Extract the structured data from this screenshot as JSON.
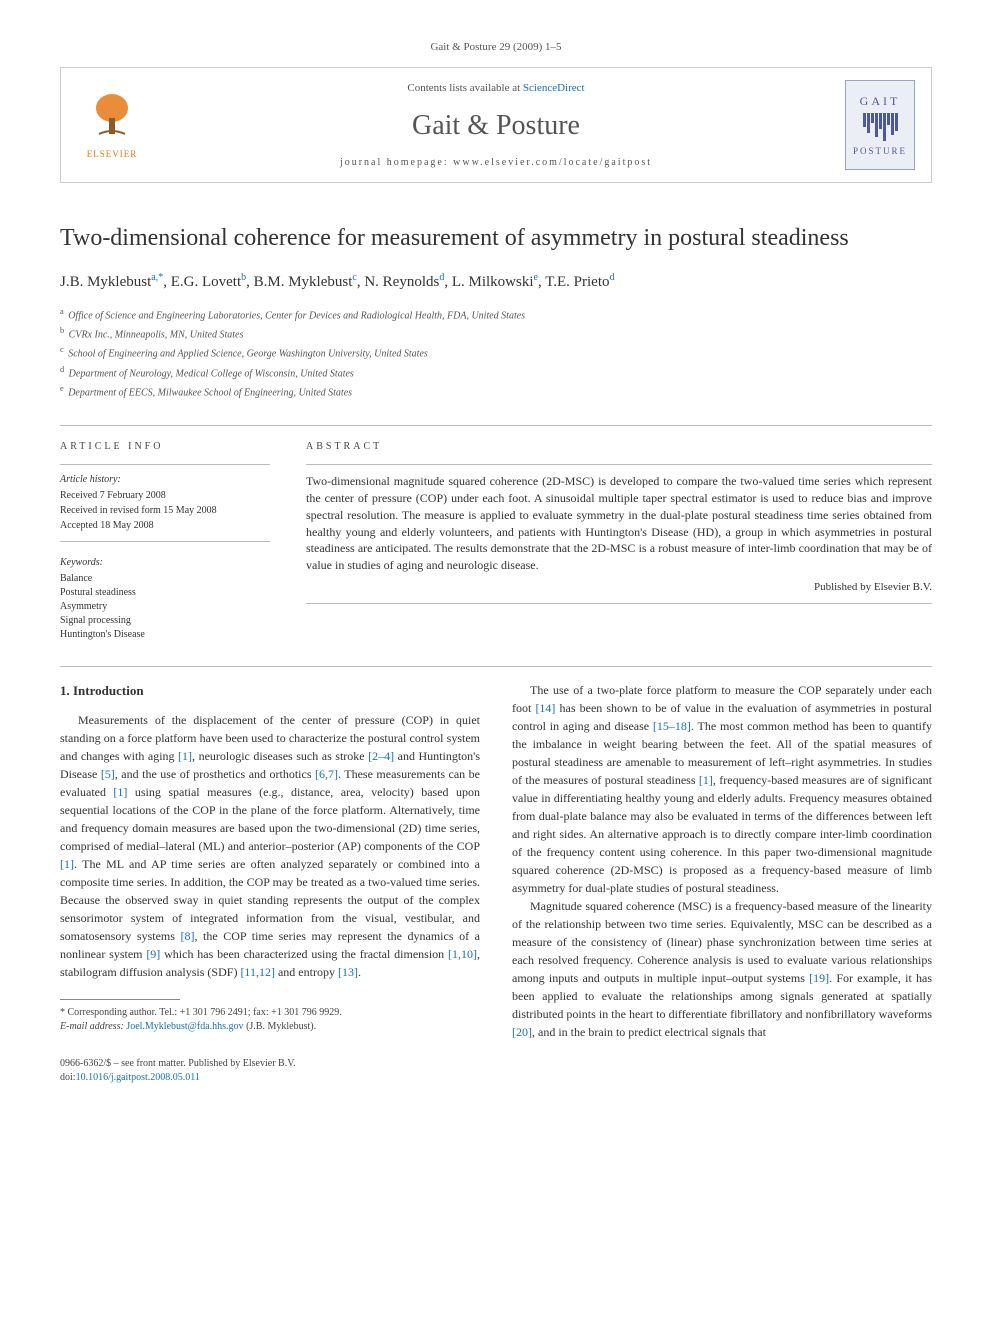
{
  "journal_ref": "Gait & Posture 29 (2009) 1–5",
  "header": {
    "contents_prefix": "Contents lists available at ",
    "contents_link": "ScienceDirect",
    "journal_name": "Gait & Posture",
    "homepage_label": "journal homepage: ",
    "homepage_url": "www.elsevier.com/locate/gaitpost",
    "publisher_brand": "ELSEVIER",
    "cover_title": "GAIT",
    "cover_subtitle": "POSTURE"
  },
  "title": "Two-dimensional coherence for measurement of asymmetry in postural steadiness",
  "authors": [
    {
      "name": "J.B. Myklebust",
      "marks": "a,*"
    },
    {
      "name": "E.G. Lovett",
      "marks": "b"
    },
    {
      "name": "B.M. Myklebust",
      "marks": "c"
    },
    {
      "name": "N. Reynolds",
      "marks": "d"
    },
    {
      "name": "L. Milkowski",
      "marks": "e"
    },
    {
      "name": "T.E. Prieto",
      "marks": "d"
    }
  ],
  "affiliations": [
    {
      "mark": "a",
      "text": "Office of Science and Engineering Laboratories, Center for Devices and Radiological Health, FDA, United States"
    },
    {
      "mark": "b",
      "text": "CVRx Inc., Minneapolis, MN, United States"
    },
    {
      "mark": "c",
      "text": "School of Engineering and Applied Science, George Washington University, United States"
    },
    {
      "mark": "d",
      "text": "Department of Neurology, Medical College of Wisconsin, United States"
    },
    {
      "mark": "e",
      "text": "Department of EECS, Milwaukee School of Engineering, United States"
    }
  ],
  "article_info": {
    "label": "ARTICLE INFO",
    "history_label": "Article history:",
    "received": "Received 7 February 2008",
    "revised": "Received in revised form 15 May 2008",
    "accepted": "Accepted 18 May 2008",
    "keywords_label": "Keywords:",
    "keywords": [
      "Balance",
      "Postural steadiness",
      "Asymmetry",
      "Signal processing",
      "Huntington's Disease"
    ]
  },
  "abstract": {
    "label": "ABSTRACT",
    "text": "Two-dimensional magnitude squared coherence (2D-MSC) is developed to compare the two-valued time series which represent the center of pressure (COP) under each foot. A sinusoidal multiple taper spectral estimator is used to reduce bias and improve spectral resolution. The measure is applied to evaluate symmetry in the dual-plate postural steadiness time series obtained from healthy young and elderly volunteers, and patients with Huntington's Disease (HD), a group in which asymmetries in postural steadiness are anticipated. The results demonstrate that the 2D-MSC is a robust measure of inter-limb coordination that may be of value in studies of aging and neurologic disease.",
    "publisher": "Published by Elsevier B.V."
  },
  "section1": {
    "heading": "1. Introduction",
    "p1a": "Measurements of the displacement of the center of pressure (COP) in quiet standing on a force platform have been used to characterize the postural control system and changes with aging ",
    "p1b": ", neurologic diseases such as stroke ",
    "p1c": " and Huntington's Disease ",
    "p1d": ", and the use of prosthetics and orthotics ",
    "p1e": ". These measurements can be evaluated ",
    "p1f": " using spatial measures (e.g., distance, area, velocity) based upon sequential locations of the COP in the plane of the force platform. Alternatively, time and frequency domain measures are based upon the two-dimensional (2D) time series, comprised of medial–lateral (ML) and anterior–posterior (AP) components of the COP ",
    "p1g": ". The ML and AP time series are often analyzed separately or combined into a composite time series. In addition, the COP may be treated as a two-valued time series. Because the observed sway in quiet standing represents the output of the complex sensorimotor system of integrated information from the visual, vestibular, and somatosensory systems ",
    "p1h": ", the COP time series may represent the dynamics of a nonlinear system ",
    "p1i": " which has been characterized using the fractal dimension ",
    "p1j": ", stabilogram diffusion analysis (SDF) ",
    "p1k": " and entropy ",
    "p1l": ".",
    "p2a": "The use of a two-plate force platform to measure the COP separately under each foot ",
    "p2b": " has been shown to be of value in the evaluation of asymmetries in postural control in aging and disease ",
    "p2c": ". The most common method has been to quantify the imbalance in weight bearing between the feet. All of the spatial measures of postural steadiness are amenable to measurement of left–right asymmetries. In studies of the measures of postural steadiness ",
    "p2d": ", frequency-based measures are of significant value in differentiating healthy young and elderly adults. Frequency measures obtained from dual-plate balance may also be evaluated in terms of the differences between left and right sides. An alternative approach is to directly compare inter-limb coordination of the frequency content using coherence. In this paper two-dimensional magnitude squared coherence (2D-MSC) is proposed as a frequency-based measure of limb asymmetry for dual-plate studies of postural steadiness.",
    "p3a": "Magnitude squared coherence (MSC) is a frequency-based measure of the linearity of the relationship between two time series. Equivalently, MSC can be described as a measure of the consistency of (linear) phase synchronization between time series at each resolved frequency. Coherence analysis is used to evaluate various relationships among inputs and outputs in multiple input–output systems ",
    "p3b": ". For example, it has been applied to evaluate the relationships among signals generated at spatially distributed points in the heart to differentiate fibrillatory and nonfibrillatory waveforms ",
    "p3c": ", and in the brain to predict electrical signals that",
    "refs": {
      "r1": "[1]",
      "r2_4": "[2–4]",
      "r5": "[5]",
      "r6_7": "[6,7]",
      "r1b": "[1]",
      "r1c": "[1]",
      "r8": "[8]",
      "r9": "[9]",
      "r1_10": "[1,10]",
      "r11_12": "[11,12]",
      "r13": "[13]",
      "r14": "[14]",
      "r15_18": "[15–18]",
      "r1d": "[1]",
      "r19": "[19]",
      "r20": "[20]"
    }
  },
  "footnote": {
    "corr": "* Corresponding author. Tel.: +1 301 796 2491; fax: +1 301 796 9929.",
    "email_label": "E-mail address: ",
    "email": "Joel.Myklebust@fda.hhs.gov",
    "email_name": " (J.B. Myklebust)."
  },
  "copyright": {
    "line1": "0966-6362/$ – see front matter. Published by Elsevier B.V.",
    "doi_label": "doi:",
    "doi": "10.1016/j.gaitpost.2008.05.011"
  },
  "colors": {
    "link": "#1a6fb3",
    "publisher_orange": "#e67817",
    "border": "#cccccc",
    "text": "#333333"
  }
}
